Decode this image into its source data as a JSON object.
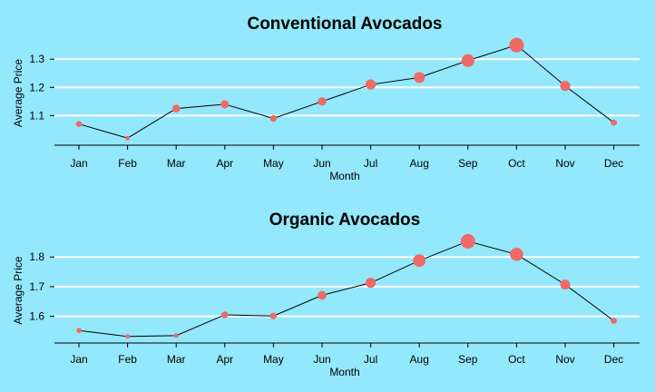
{
  "colors": {
    "background": "#94e8fb",
    "grid": "#ffffff",
    "point": "#ee6a66",
    "line": "#000000"
  },
  "chart_data": [
    {
      "type": "scatter",
      "title": "Conventional Avocados",
      "xlabel": "Month",
      "ylabel": "Average Price",
      "categories": [
        "Jan",
        "Feb",
        "Mar",
        "Apr",
        "May",
        "Jun",
        "Jul",
        "Aug",
        "Sep",
        "Oct",
        "Nov",
        "Dec"
      ],
      "values": [
        1.07,
        1.02,
        1.125,
        1.14,
        1.09,
        1.15,
        1.21,
        1.235,
        1.295,
        1.35,
        1.205,
        1.075
      ],
      "yticks": [
        1.1,
        1.2,
        1.3
      ],
      "ylim": [
        0.995,
        1.365
      ],
      "grid": true,
      "connected_line": true,
      "point_size_encodes_value": true
    },
    {
      "type": "scatter",
      "title": "Organic Avocados",
      "xlabel": "Month",
      "ylabel": "Average Price",
      "categories": [
        "Jan",
        "Feb",
        "Mar",
        "Apr",
        "May",
        "Jun",
        "Jul",
        "Aug",
        "Sep",
        "Oct",
        "Nov",
        "Dec"
      ],
      "values": [
        1.552,
        1.532,
        1.535,
        1.605,
        1.601,
        1.671,
        1.713,
        1.788,
        1.853,
        1.809,
        1.707,
        1.585
      ],
      "yticks": [
        1.6,
        1.7,
        1.8
      ],
      "ylim": [
        1.51,
        1.865
      ],
      "grid": true,
      "connected_line": true,
      "point_size_encodes_value": true
    }
  ]
}
